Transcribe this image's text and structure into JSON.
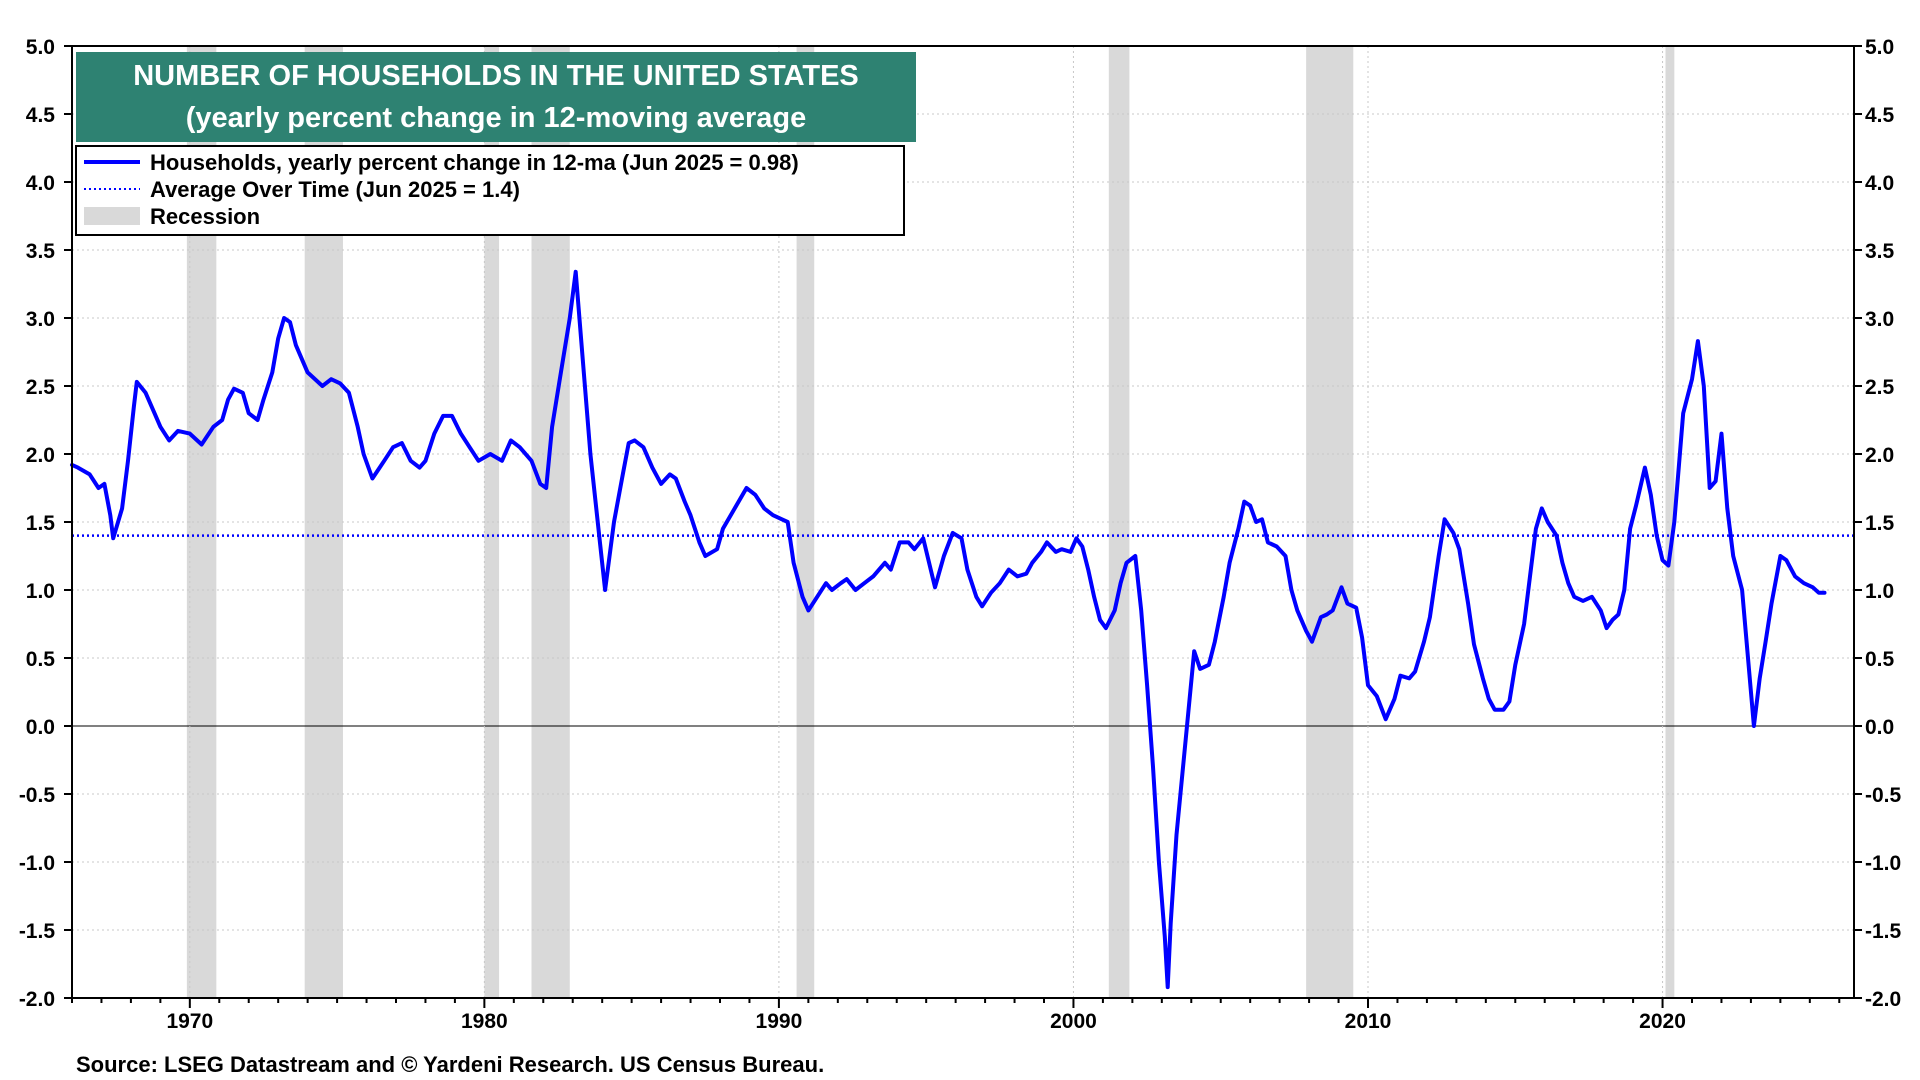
{
  "chart_data": {
    "type": "line",
    "title": "NUMBER OF HOUSEHOLDS IN THE UNITED STATES",
    "subtitle": "(yearly percent change in 12-moving average",
    "source": "Source: LSEG Datastream and © Yardeni Research. US Census Bureau.",
    "xlim": [
      1966.0,
      2026.5
    ],
    "ylim": [
      -2.0,
      5.0
    ],
    "x_ticks": [
      "1970",
      "1980",
      "1990",
      "2000",
      "2010",
      "2020"
    ],
    "y_ticks": [
      "5.0",
      "4.5",
      "4.0",
      "3.5",
      "3.0",
      "2.5",
      "2.0",
      "1.5",
      "1.0",
      "0.5",
      "0.0",
      "-0.5",
      "-1.0",
      "-1.5",
      "-2.0"
    ],
    "grid": true,
    "legend": {
      "position": "top-left",
      "entries": [
        {
          "label": "Households, yearly percent change in 12-ma (Jun 2025 = 0.98)",
          "style": "solid",
          "color": "#0000ff"
        },
        {
          "label": "Average Over Time (Jun 2025 = 1.4)",
          "style": "dotted",
          "color": "#0000ff"
        },
        {
          "label": "Recession",
          "style": "band",
          "color": "#d9d9d9"
        }
      ]
    },
    "average_value": 1.4,
    "recessions": [
      [
        1969.9,
        1970.9
      ],
      [
        1973.9,
        1975.2
      ],
      [
        1980.0,
        1980.5
      ],
      [
        1981.6,
        1982.9
      ],
      [
        1990.6,
        1991.2
      ],
      [
        2001.2,
        2001.9
      ],
      [
        2007.9,
        2009.5
      ],
      [
        2020.1,
        2020.4
      ]
    ],
    "series": [
      {
        "name": "Households, yearly percent change in 12-ma",
        "color": "#0000ff",
        "points": [
          [
            1966.0,
            1.92
          ],
          [
            1966.2,
            1.9
          ],
          [
            1966.6,
            1.85
          ],
          [
            1966.9,
            1.75
          ],
          [
            1967.1,
            1.78
          ],
          [
            1967.3,
            1.55
          ],
          [
            1967.4,
            1.38
          ],
          [
            1967.7,
            1.6
          ],
          [
            1967.9,
            1.95
          ],
          [
            1968.1,
            2.35
          ],
          [
            1968.2,
            2.53
          ],
          [
            1968.5,
            2.45
          ],
          [
            1968.8,
            2.3
          ],
          [
            1969.0,
            2.2
          ],
          [
            1969.3,
            2.1
          ],
          [
            1969.6,
            2.17
          ],
          [
            1970.0,
            2.15
          ],
          [
            1970.4,
            2.07
          ],
          [
            1970.8,
            2.2
          ],
          [
            1971.1,
            2.25
          ],
          [
            1971.3,
            2.4
          ],
          [
            1971.5,
            2.48
          ],
          [
            1971.8,
            2.45
          ],
          [
            1972.0,
            2.3
          ],
          [
            1972.3,
            2.25
          ],
          [
            1972.5,
            2.4
          ],
          [
            1972.8,
            2.6
          ],
          [
            1973.0,
            2.85
          ],
          [
            1973.2,
            3.0
          ],
          [
            1973.4,
            2.97
          ],
          [
            1973.6,
            2.8
          ],
          [
            1974.0,
            2.6
          ],
          [
            1974.5,
            2.5
          ],
          [
            1974.8,
            2.55
          ],
          [
            1975.1,
            2.52
          ],
          [
            1975.4,
            2.45
          ],
          [
            1975.7,
            2.2
          ],
          [
            1975.9,
            2.0
          ],
          [
            1976.2,
            1.82
          ],
          [
            1976.6,
            1.95
          ],
          [
            1976.9,
            2.05
          ],
          [
            1977.2,
            2.08
          ],
          [
            1977.5,
            1.95
          ],
          [
            1977.8,
            1.9
          ],
          [
            1978.0,
            1.95
          ],
          [
            1978.3,
            2.15
          ],
          [
            1978.6,
            2.28
          ],
          [
            1978.9,
            2.28
          ],
          [
            1979.2,
            2.15
          ],
          [
            1979.5,
            2.05
          ],
          [
            1979.8,
            1.95
          ],
          [
            1980.2,
            2.0
          ],
          [
            1980.6,
            1.95
          ],
          [
            1980.9,
            2.1
          ],
          [
            1981.2,
            2.05
          ],
          [
            1981.6,
            1.95
          ],
          [
            1981.9,
            1.78
          ],
          [
            1982.1,
            1.75
          ],
          [
            1982.3,
            2.2
          ],
          [
            1982.6,
            2.6
          ],
          [
            1982.9,
            3.0
          ],
          [
            1983.1,
            3.34
          ],
          [
            1983.3,
            2.8
          ],
          [
            1983.6,
            2.0
          ],
          [
            1983.9,
            1.4
          ],
          [
            1984.1,
            1.0
          ],
          [
            1984.4,
            1.5
          ],
          [
            1984.7,
            1.85
          ],
          [
            1984.9,
            2.08
          ],
          [
            1985.1,
            2.1
          ],
          [
            1985.4,
            2.05
          ],
          [
            1985.7,
            1.9
          ],
          [
            1986.0,
            1.78
          ],
          [
            1986.3,
            1.85
          ],
          [
            1986.5,
            1.82
          ],
          [
            1986.8,
            1.65
          ],
          [
            1987.0,
            1.55
          ],
          [
            1987.3,
            1.35
          ],
          [
            1987.5,
            1.25
          ],
          [
            1987.9,
            1.3
          ],
          [
            1988.1,
            1.45
          ],
          [
            1988.5,
            1.6
          ],
          [
            1988.9,
            1.75
          ],
          [
            1989.2,
            1.7
          ],
          [
            1989.5,
            1.6
          ],
          [
            1989.8,
            1.55
          ],
          [
            1990.1,
            1.52
          ],
          [
            1990.3,
            1.5
          ],
          [
            1990.5,
            1.2
          ],
          [
            1990.8,
            0.95
          ],
          [
            1991.0,
            0.85
          ],
          [
            1991.3,
            0.95
          ],
          [
            1991.6,
            1.05
          ],
          [
            1991.8,
            1.0
          ],
          [
            1992.1,
            1.05
          ],
          [
            1992.3,
            1.08
          ],
          [
            1992.6,
            1.0
          ],
          [
            1992.9,
            1.05
          ],
          [
            1993.2,
            1.1
          ],
          [
            1993.6,
            1.2
          ],
          [
            1993.8,
            1.15
          ],
          [
            1994.1,
            1.35
          ],
          [
            1994.4,
            1.35
          ],
          [
            1994.6,
            1.3
          ],
          [
            1994.9,
            1.38
          ],
          [
            1995.1,
            1.2
          ],
          [
            1995.3,
            1.02
          ],
          [
            1995.6,
            1.25
          ],
          [
            1995.9,
            1.42
          ],
          [
            1996.2,
            1.38
          ],
          [
            1996.4,
            1.15
          ],
          [
            1996.7,
            0.95
          ],
          [
            1996.9,
            0.88
          ],
          [
            1997.2,
            0.98
          ],
          [
            1997.5,
            1.05
          ],
          [
            1997.8,
            1.15
          ],
          [
            1998.1,
            1.1
          ],
          [
            1998.4,
            1.12
          ],
          [
            1998.6,
            1.2
          ],
          [
            1998.9,
            1.28
          ],
          [
            1999.1,
            1.35
          ],
          [
            1999.4,
            1.28
          ],
          [
            1999.6,
            1.3
          ],
          [
            1999.9,
            1.28
          ],
          [
            2000.1,
            1.38
          ],
          [
            2000.3,
            1.32
          ],
          [
            2000.5,
            1.15
          ],
          [
            2000.7,
            0.95
          ],
          [
            2000.9,
            0.78
          ],
          [
            2001.1,
            0.72
          ],
          [
            2001.4,
            0.85
          ],
          [
            2001.6,
            1.05
          ],
          [
            2001.8,
            1.2
          ],
          [
            2002.1,
            1.25
          ],
          [
            2002.3,
            0.85
          ],
          [
            2002.5,
            0.3
          ],
          [
            2002.7,
            -0.3
          ],
          [
            2002.9,
            -1.0
          ],
          [
            2003.1,
            -1.55
          ],
          [
            2003.2,
            -1.92
          ],
          [
            2003.3,
            -1.45
          ],
          [
            2003.5,
            -0.8
          ],
          [
            2003.7,
            -0.35
          ],
          [
            2003.9,
            0.1
          ],
          [
            2004.1,
            0.55
          ],
          [
            2004.3,
            0.42
          ],
          [
            2004.6,
            0.45
          ],
          [
            2004.8,
            0.62
          ],
          [
            2005.1,
            0.95
          ],
          [
            2005.3,
            1.2
          ],
          [
            2005.6,
            1.45
          ],
          [
            2005.8,
            1.65
          ],
          [
            2006.0,
            1.62
          ],
          [
            2006.2,
            1.5
          ],
          [
            2006.4,
            1.52
          ],
          [
            2006.6,
            1.35
          ],
          [
            2006.9,
            1.32
          ],
          [
            2007.2,
            1.25
          ],
          [
            2007.4,
            1.0
          ],
          [
            2007.6,
            0.85
          ],
          [
            2007.9,
            0.7
          ],
          [
            2008.1,
            0.62
          ],
          [
            2008.4,
            0.8
          ],
          [
            2008.6,
            0.82
          ],
          [
            2008.8,
            0.85
          ],
          [
            2009.1,
            1.02
          ],
          [
            2009.3,
            0.9
          ],
          [
            2009.6,
            0.87
          ],
          [
            2009.8,
            0.65
          ],
          [
            2010.0,
            0.3
          ],
          [
            2010.3,
            0.22
          ],
          [
            2010.6,
            0.05
          ],
          [
            2010.9,
            0.2
          ],
          [
            2011.1,
            0.37
          ],
          [
            2011.4,
            0.35
          ],
          [
            2011.6,
            0.4
          ],
          [
            2011.9,
            0.62
          ],
          [
            2012.1,
            0.8
          ],
          [
            2012.4,
            1.25
          ],
          [
            2012.6,
            1.52
          ],
          [
            2012.9,
            1.42
          ],
          [
            2013.1,
            1.3
          ],
          [
            2013.4,
            0.9
          ],
          [
            2013.6,
            0.6
          ],
          [
            2013.9,
            0.35
          ],
          [
            2014.1,
            0.2
          ],
          [
            2014.3,
            0.12
          ],
          [
            2014.6,
            0.12
          ],
          [
            2014.8,
            0.18
          ],
          [
            2015.0,
            0.45
          ],
          [
            2015.3,
            0.75
          ],
          [
            2015.5,
            1.1
          ],
          [
            2015.7,
            1.45
          ],
          [
            2015.9,
            1.6
          ],
          [
            2016.1,
            1.5
          ],
          [
            2016.4,
            1.4
          ],
          [
            2016.6,
            1.2
          ],
          [
            2016.8,
            1.05
          ],
          [
            2017.0,
            0.95
          ],
          [
            2017.3,
            0.92
          ],
          [
            2017.6,
            0.95
          ],
          [
            2017.9,
            0.85
          ],
          [
            2018.1,
            0.72
          ],
          [
            2018.3,
            0.78
          ],
          [
            2018.5,
            0.82
          ],
          [
            2018.7,
            1.0
          ],
          [
            2018.9,
            1.45
          ],
          [
            2019.1,
            1.62
          ],
          [
            2019.4,
            1.9
          ],
          [
            2019.6,
            1.7
          ],
          [
            2019.8,
            1.4
          ],
          [
            2020.0,
            1.22
          ],
          [
            2020.2,
            1.18
          ],
          [
            2020.4,
            1.5
          ],
          [
            2020.7,
            2.3
          ],
          [
            2021.0,
            2.55
          ],
          [
            2021.2,
            2.83
          ],
          [
            2021.4,
            2.5
          ],
          [
            2021.6,
            1.75
          ],
          [
            2021.8,
            1.8
          ],
          [
            2022.0,
            2.15
          ],
          [
            2022.2,
            1.6
          ],
          [
            2022.4,
            1.25
          ],
          [
            2022.7,
            1.0
          ],
          [
            2022.9,
            0.5
          ],
          [
            2023.1,
            0.0
          ],
          [
            2023.3,
            0.35
          ],
          [
            2023.5,
            0.62
          ],
          [
            2023.7,
            0.9
          ],
          [
            2024.0,
            1.25
          ],
          [
            2024.2,
            1.22
          ],
          [
            2024.5,
            1.1
          ],
          [
            2024.8,
            1.05
          ],
          [
            2025.1,
            1.02
          ],
          [
            2025.3,
            0.98
          ],
          [
            2025.5,
            0.98
          ]
        ]
      }
    ]
  }
}
